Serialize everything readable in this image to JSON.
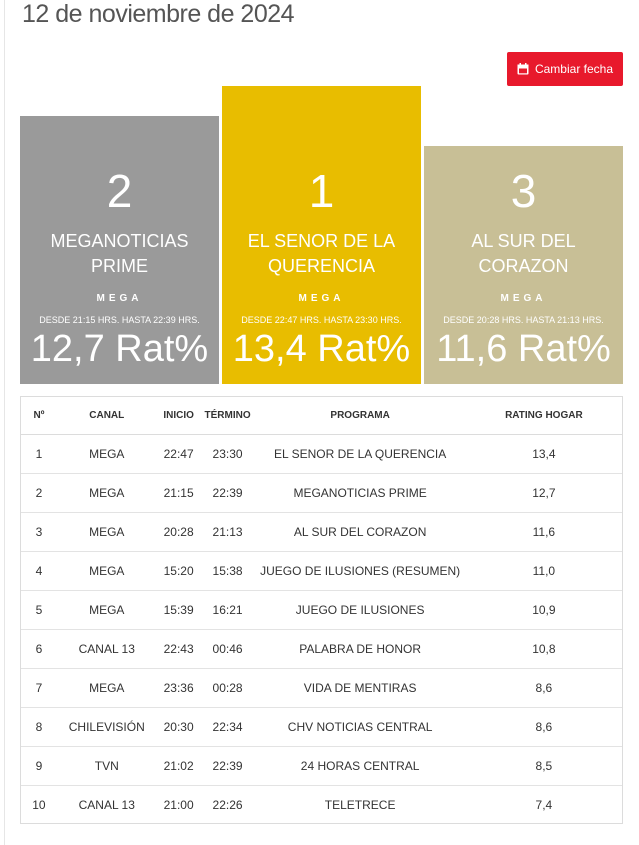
{
  "header": {
    "date_title": "12 de noviembre de 2024"
  },
  "actions": {
    "change_date_label": "Cambiar fecha"
  },
  "podium": [
    {
      "rank": "2",
      "program": "MEGANOTICIAS PRIME",
      "channel": "MEGA",
      "time": "DESDE 21:15 HRS. HASTA 22:39 HRS.",
      "rating": "12,7 Rat%"
    },
    {
      "rank": "1",
      "program": "EL SENOR DE LA QUERENCIA",
      "channel": "MEGA",
      "time": "DESDE 22:47 HRS. HASTA 23:30 HRS.",
      "rating": "13,4 Rat%"
    },
    {
      "rank": "3",
      "program": "AL SUR DEL CORAZON",
      "channel": "MEGA",
      "time": "DESDE 20:28 HRS. HASTA 21:13 HRS.",
      "rating": "11,6 Rat%"
    }
  ],
  "table": {
    "headers": [
      "Nº",
      "CANAL",
      "INICIO",
      "TÉRMINO",
      "PROGRAMA",
      "RATING HOGAR"
    ],
    "rows": [
      [
        "1",
        "MEGA",
        "22:47",
        "23:30",
        "EL SENOR DE LA QUERENCIA",
        "13,4"
      ],
      [
        "2",
        "MEGA",
        "21:15",
        "22:39",
        "MEGANOTICIAS PRIME",
        "12,7"
      ],
      [
        "3",
        "MEGA",
        "20:28",
        "21:13",
        "AL SUR DEL CORAZON",
        "11,6"
      ],
      [
        "4",
        "MEGA",
        "15:20",
        "15:38",
        "JUEGO DE ILUSIONES (RESUMEN)",
        "11,0"
      ],
      [
        "5",
        "MEGA",
        "15:39",
        "16:21",
        "JUEGO DE ILUSIONES",
        "10,9"
      ],
      [
        "6",
        "CANAL 13",
        "22:43",
        "00:46",
        "PALABRA DE HONOR",
        "10,8"
      ],
      [
        "7",
        "MEGA",
        "23:36",
        "00:28",
        "VIDA DE MENTIRAS",
        "8,6"
      ],
      [
        "8",
        "CHILEVISIÓN",
        "20:30",
        "22:34",
        "CHV NOTICIAS CENTRAL",
        "8,6"
      ],
      [
        "9",
        "TVN",
        "21:02",
        "22:39",
        "24 HORAS CENTRAL",
        "8,5"
      ],
      [
        "10",
        "CANAL 13",
        "21:00",
        "22:26",
        "TELETRECE",
        "7,4"
      ]
    ]
  },
  "colors": {
    "button": "#e8192c",
    "gold": "#e8bd00",
    "silver": "#9a9a9a",
    "bronze": "#c8bf96"
  },
  "icons": {
    "button_icon": "calendar-icon"
  }
}
